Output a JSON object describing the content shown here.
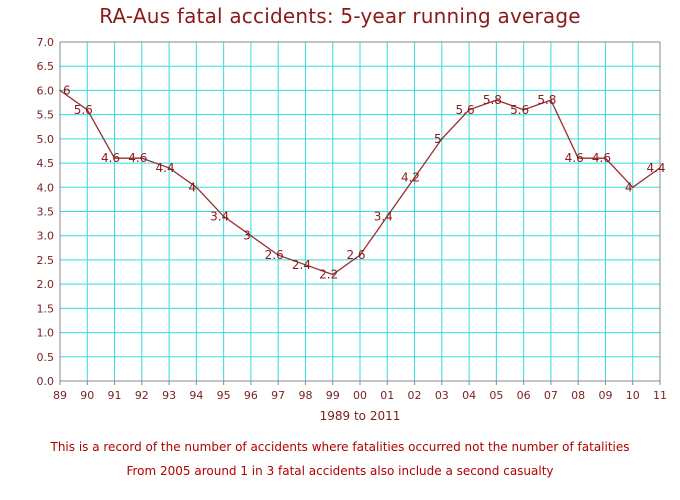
{
  "chart_data": {
    "type": "line",
    "title": "RA-Aus fatal accidents: 5-year running average",
    "xlabel": "1989 to 2011",
    "ylabel": "",
    "x": [
      "89",
      "90",
      "91",
      "92",
      "93",
      "94",
      "95",
      "96",
      "97",
      "98",
      "99",
      "00",
      "01",
      "02",
      "03",
      "04",
      "05",
      "06",
      "07",
      "08",
      "09",
      "10",
      "11"
    ],
    "series": [
      {
        "values": [
          6.0,
          5.6,
          4.6,
          4.6,
          4.4,
          4.0,
          3.4,
          3.0,
          2.6,
          2.4,
          2.2,
          2.6,
          3.4,
          4.2,
          5.0,
          5.6,
          5.8,
          5.6,
          5.8,
          4.6,
          4.6,
          4.0,
          4.4
        ],
        "point_labels": [
          "6",
          "5.6",
          "4.6",
          "4.6",
          "4.4",
          "4",
          "3.4",
          "3",
          "2.6",
          "2.4",
          "2.2",
          "2.6",
          "3.4",
          "4.2",
          "5",
          "5.6",
          "5.8",
          "5.6",
          "5.8",
          "4.6",
          "4.6",
          "4",
          "4.4"
        ]
      }
    ],
    "ylim": [
      0,
      7.0
    ],
    "y_ticks": [
      "0.0",
      "0.5",
      "1.0",
      "1.5",
      "2.0",
      "2.5",
      "3.0",
      "3.5",
      "4.0",
      "4.5",
      "5.0",
      "5.5",
      "6.0",
      "6.5",
      "7.0"
    ],
    "grid": true,
    "colors": {
      "line": "#9b2d2d",
      "grid": "#33dddd",
      "frame": "#888888",
      "text": "#7a1f1f"
    }
  },
  "notes": [
    "This is a record of the number of accidents  where fatalities occurred not the number of fatalities",
    "From 2005 around 1 in 3 fatal accidents also include a second casualty"
  ]
}
